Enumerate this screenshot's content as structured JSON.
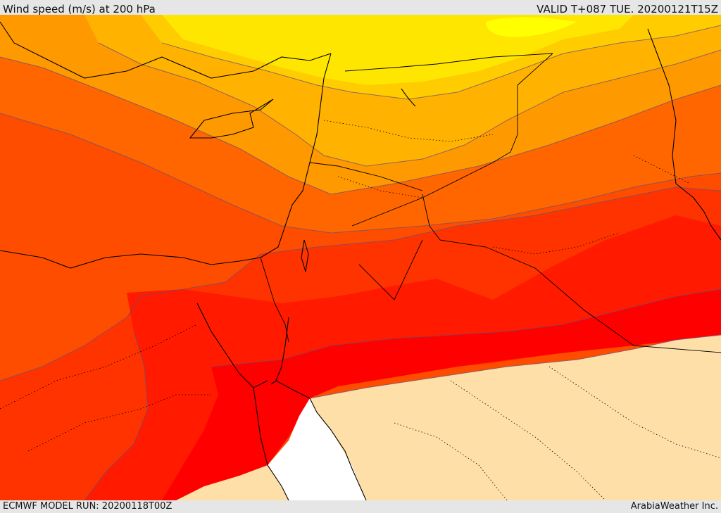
{
  "header": {
    "title": "Wind speed (m/s) at 200 hPa",
    "valid_time": "VALID T+087 TUE. 20200121T15Z"
  },
  "footer": {
    "model_run": "ECMWF MODEL RUN: 20200118T00Z",
    "credit": "ArabiaWeather Inc."
  },
  "colors": {
    "background": "#e6e6e6",
    "band_max": "#ff0000",
    "band_very_high": "#ff1a00",
    "band_high": "#ff3300",
    "band_mid_high": "#ff4d00",
    "band_mid": "#ff6600",
    "band_mid_low": "#ff9900",
    "band_low_mid": "#ffb300",
    "band_low": "#ffcc00",
    "band_lowest": "#ffe600",
    "band_peak_yellow": "#ffff00",
    "calm_area": "#ffdfa8",
    "sea_gap": "#ffffff",
    "contour": "#6a4f7a",
    "coastline": "#000000"
  }
}
